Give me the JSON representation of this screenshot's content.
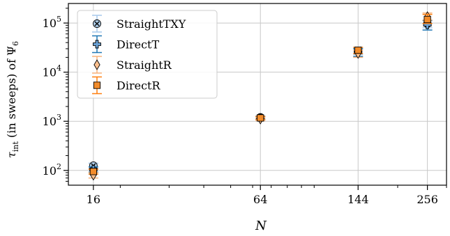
{
  "chart_data": {
    "type": "scatter",
    "xscale": "log",
    "yscale": "log",
    "xlabel": "N",
    "ylabel": "τ_int (in sweeps) of Ψ_6",
    "xlim": [
      13,
      300
    ],
    "ylim": [
      50,
      250000
    ],
    "grid": true,
    "legend_position": "top-left",
    "x_ticks": [
      {
        "value": 16,
        "label": "16"
      },
      {
        "value": 64,
        "label": "64"
      },
      {
        "value": 144,
        "label": "144"
      },
      {
        "value": 256,
        "label": "256"
      }
    ],
    "y_ticks": [
      {
        "value": 100,
        "base": "10",
        "exp": "2"
      },
      {
        "value": 1000,
        "base": "10",
        "exp": "3"
      },
      {
        "value": 10000,
        "base": "10",
        "exp": "4"
      },
      {
        "value": 100000,
        "base": "10",
        "exp": "5"
      }
    ],
    "series": [
      {
        "name": "StraightTXY",
        "marker": "x-circle",
        "face": "#aecde9",
        "errcolor": "#a6c8ea",
        "points": [
          {
            "x": 16,
            "y": 125,
            "lo": 110,
            "hi": 140
          },
          {
            "x": 64,
            "y": 1200,
            "lo": 1120,
            "hi": 1280
          },
          {
            "x": 144,
            "y": 27000,
            "lo": 23000,
            "hi": 31000
          },
          {
            "x": 256,
            "y": 97000,
            "lo": 80000,
            "hi": 115000
          }
        ]
      },
      {
        "name": "DirectT",
        "marker": "plus",
        "face": "#6aa1d4",
        "errcolor": "#1f77b4",
        "points": [
          {
            "x": 16,
            "y": 105,
            "lo": 92,
            "hi": 118
          },
          {
            "x": 64,
            "y": 1180,
            "lo": 1100,
            "hi": 1260
          },
          {
            "x": 144,
            "y": 25000,
            "lo": 21000,
            "hi": 30000
          },
          {
            "x": 256,
            "y": 92000,
            "lo": 72000,
            "hi": 112000
          }
        ]
      },
      {
        "name": "StraightR",
        "marker": "diamond",
        "face": "#fbc08f",
        "errcolor": "#f9b27a",
        "points": [
          {
            "x": 16,
            "y": 80,
            "lo": 70,
            "hi": 90
          },
          {
            "x": 64,
            "y": 1110,
            "lo": 1030,
            "hi": 1190
          },
          {
            "x": 144,
            "y": 24000,
            "lo": 20000,
            "hi": 28000
          },
          {
            "x": 256,
            "y": 135000,
            "lo": 115000,
            "hi": 160000
          }
        ]
      },
      {
        "name": "DirectR",
        "marker": "square",
        "face": "#f28c2b",
        "errcolor": "#ff7f0e",
        "points": [
          {
            "x": 16,
            "y": 95,
            "lo": 84,
            "hi": 106
          },
          {
            "x": 64,
            "y": 1170,
            "lo": 1090,
            "hi": 1250
          },
          {
            "x": 144,
            "y": 28000,
            "lo": 24000,
            "hi": 32000
          },
          {
            "x": 256,
            "y": 118000,
            "lo": 98000,
            "hi": 150000
          }
        ]
      }
    ]
  }
}
